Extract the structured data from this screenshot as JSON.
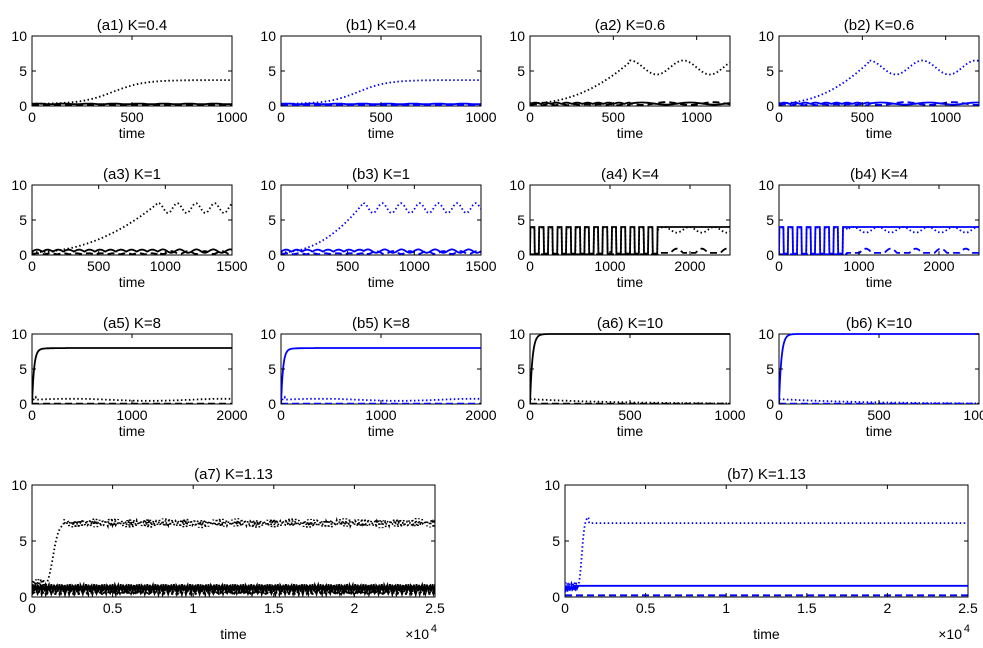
{
  "chart_data": [
    {
      "id": "a1",
      "type": "line",
      "title": "(a1) K=0.4",
      "xlabel": "time",
      "xlim": [
        0,
        1000
      ],
      "ylim": [
        0,
        10
      ],
      "xticks": [
        "0",
        "500",
        "1000"
      ],
      "yticks": [
        "0",
        "5",
        "10"
      ],
      "color": "#000000",
      "mode": "t1",
      "K": 0.4,
      "t_rise": 650,
      "plateau": 3.7,
      "osc_low": 0.3
    },
    {
      "id": "b1",
      "type": "line",
      "title": "(b1) K=0.4",
      "xlabel": "time",
      "xlim": [
        0,
        1000
      ],
      "ylim": [
        0,
        10
      ],
      "xticks": [
        "0",
        "500",
        "1000"
      ],
      "yticks": [
        "0",
        "5",
        "10"
      ],
      "color": "#0000ff",
      "mode": "t1",
      "K": 0.4,
      "t_rise": 620,
      "plateau": 3.7,
      "osc_low": 0.3
    },
    {
      "id": "a2",
      "type": "line",
      "title": "(a2) K=0.6",
      "xlabel": "time",
      "xlim": [
        0,
        1200
      ],
      "ylim": [
        0,
        10
      ],
      "xticks": [
        "0",
        "500",
        "1000"
      ],
      "yticks": [
        "0",
        "5",
        "10"
      ],
      "color": "#000000",
      "mode": "t2",
      "K": 0.6,
      "t_rise": 600,
      "plateau": 5.5,
      "amp": 1.0,
      "period": 320,
      "osc_low": 0.5
    },
    {
      "id": "b2",
      "type": "line",
      "title": "(b2) K=0.6",
      "xlabel": "time",
      "xlim": [
        0,
        1200
      ],
      "ylim": [
        0,
        10
      ],
      "xticks": [
        "0",
        "500",
        "1000"
      ],
      "yticks": [
        "0",
        "5",
        "10"
      ],
      "color": "#0000ff",
      "mode": "t2",
      "K": 0.6,
      "t_rise": 540,
      "plateau": 5.5,
      "amp": 1.0,
      "period": 320,
      "osc_low": 0.5
    },
    {
      "id": "a3",
      "type": "line",
      "title": "(a3) K=1",
      "xlabel": "time",
      "xlim": [
        0,
        1500
      ],
      "ylim": [
        0,
        10
      ],
      "xticks": [
        "0",
        "500",
        "1000",
        "1500"
      ],
      "yticks": [
        "0",
        "5",
        "10"
      ],
      "color": "#000000",
      "mode": "t2",
      "K": 1.0,
      "t_rise": 950,
      "plateau": 6.7,
      "amp": 0.7,
      "period": 140,
      "osc_low": 0.8
    },
    {
      "id": "b3",
      "type": "line",
      "title": "(b3) K=1",
      "xlabel": "time",
      "xlim": [
        0,
        1500
      ],
      "ylim": [
        0,
        10
      ],
      "xticks": [
        "0",
        "500",
        "1000",
        "1500"
      ],
      "yticks": [
        "0",
        "5",
        "10"
      ],
      "color": "#0000ff",
      "mode": "t2",
      "K": 1.0,
      "t_rise": 620,
      "plateau": 6.7,
      "amp": 0.7,
      "period": 140,
      "osc_low": 0.8
    },
    {
      "id": "a4",
      "type": "line",
      "title": "(a4) K=4",
      "xlabel": "time",
      "xlim": [
        0,
        2500
      ],
      "ylim": [
        0,
        10
      ],
      "xticks": [
        "0",
        "1000",
        "2000"
      ],
      "yticks": [
        "0",
        "5",
        "10"
      ],
      "color": "#000000",
      "mode": "t4",
      "K": 4.0,
      "t_switch": 1600
    },
    {
      "id": "b4",
      "type": "line",
      "title": "(b4) K=4",
      "xlabel": "time",
      "xlim": [
        0,
        2500
      ],
      "ylim": [
        0,
        10
      ],
      "xticks": [
        "0",
        "1000",
        "2000"
      ],
      "yticks": [
        "0",
        "5",
        "10"
      ],
      "color": "#0000ff",
      "mode": "t4",
      "K": 4.0,
      "t_switch": 850
    },
    {
      "id": "a5",
      "type": "line",
      "title": "(a5) K=8",
      "xlabel": "time",
      "xlim": [
        0,
        2000
      ],
      "ylim": [
        0,
        10
      ],
      "xticks": [
        "0",
        "1000",
        "2000"
      ],
      "yticks": [
        "0",
        "5",
        "10"
      ],
      "color": "#000000",
      "mode": "t5",
      "K": 8.0,
      "low": 0.6
    },
    {
      "id": "b5",
      "type": "line",
      "title": "(b5) K=8",
      "xlabel": "time",
      "xlim": [
        0,
        2000
      ],
      "ylim": [
        0,
        10
      ],
      "xticks": [
        "0",
        "1000",
        "2000"
      ],
      "yticks": [
        "0",
        "5",
        "10"
      ],
      "color": "#0000ff",
      "mode": "t5",
      "K": 8.0,
      "low": 0.6
    },
    {
      "id": "a6",
      "type": "line",
      "title": "(a6) K=10",
      "xlabel": "time",
      "xlim": [
        0,
        1000
      ],
      "ylim": [
        0,
        10
      ],
      "xticks": [
        "0",
        "500",
        "1000"
      ],
      "yticks": [
        "0",
        "5",
        "10"
      ],
      "color": "#000000",
      "mode": "t6",
      "K": 10.0
    },
    {
      "id": "b6",
      "type": "line",
      "title": "(b6) K=10",
      "xlabel": "time",
      "xlim": [
        0,
        1000
      ],
      "ylim": [
        0,
        10
      ],
      "xticks": [
        "0",
        "500",
        "1000"
      ],
      "yticks": [
        "0",
        "5",
        "10"
      ],
      "color": "#0000ff",
      "mode": "t6",
      "K": 10.0
    },
    {
      "id": "a7",
      "type": "line",
      "title": "(a7) K=1.13",
      "xlabel": "time",
      "xlim": [
        0,
        25000
      ],
      "ylim": [
        0,
        10
      ],
      "xticks": [
        "0",
        "0.5",
        "1",
        "1.5",
        "2",
        "2.5"
      ],
      "yticks": [
        "0",
        "5",
        "10"
      ],
      "exponent": "×10",
      "exponent_power": "4",
      "color": "#000000",
      "mode": "t7a",
      "K": 1.13,
      "plateau": 6.6,
      "osc_low": 0.8
    },
    {
      "id": "b7",
      "type": "line",
      "title": "(b7) K=1.13",
      "xlabel": "time",
      "xlim": [
        0,
        25000
      ],
      "ylim": [
        0,
        10
      ],
      "xticks": [
        "0",
        "0.5",
        "1",
        "1.5",
        "2",
        "2.5"
      ],
      "yticks": [
        "0",
        "5",
        "10"
      ],
      "exponent": "×10",
      "exponent_power": "4",
      "color": "#0000ff",
      "mode": "t7b",
      "K": 1.13,
      "plateau": 6.6,
      "osc_low": 1.0
    }
  ]
}
